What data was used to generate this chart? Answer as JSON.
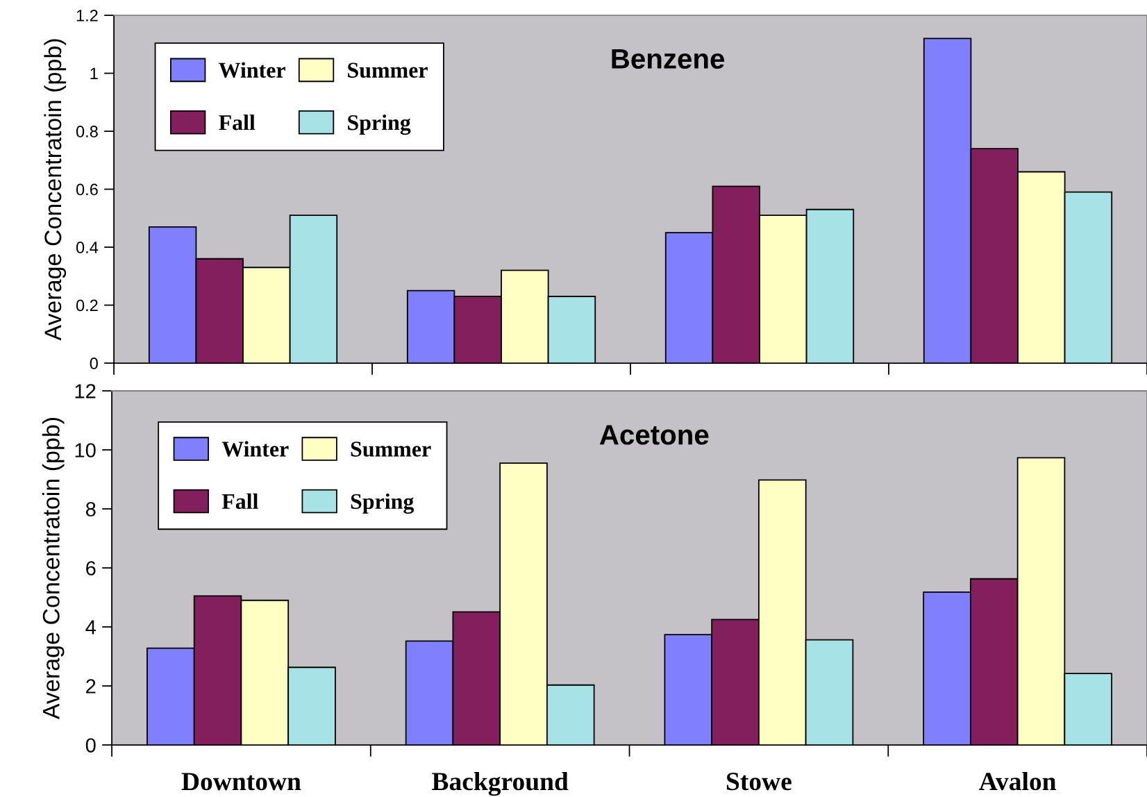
{
  "chart_data": [
    {
      "type": "bar",
      "title": "Benzene",
      "ylabel": "Average Concentratoin (ppb)",
      "categories": [
        null,
        null,
        null,
        null
      ],
      "series": [
        {
          "name": "Winter",
          "color": "#8080ff",
          "values": [
            0.47,
            0.25,
            0.45,
            1.12
          ]
        },
        {
          "name": "Fall",
          "color": "#841f5e",
          "values": [
            0.36,
            0.23,
            0.61,
            0.74
          ]
        },
        {
          "name": "Summer",
          "color": "#ffffc4",
          "values": [
            0.33,
            0.32,
            0.51,
            0.66
          ]
        },
        {
          "name": "Spring",
          "color": "#a6e2e6",
          "values": [
            0.51,
            0.23,
            0.53,
            0.59
          ]
        }
      ],
      "ylim": [
        0,
        1.2
      ],
      "yticks": [
        0,
        0.2,
        0.4,
        0.6,
        0.8,
        1,
        1.2
      ],
      "legend": "top left"
    },
    {
      "type": "bar",
      "title": "Acetone",
      "ylabel": "Average Concentratoin (ppb)",
      "categories": [
        "Downtown",
        "Background",
        "Stowe",
        "Avalon"
      ],
      "series": [
        {
          "name": "Winter",
          "color": "#8080ff",
          "values": [
            3.28,
            3.52,
            3.74,
            5.18
          ]
        },
        {
          "name": "Fall",
          "color": "#841f5e",
          "values": [
            5.05,
            4.51,
            4.25,
            5.63
          ]
        },
        {
          "name": "Summer",
          "color": "#ffffc4",
          "values": [
            4.9,
            9.55,
            8.98,
            9.73
          ]
        },
        {
          "name": "Spring",
          "color": "#a6e2e6",
          "values": [
            2.63,
            2.03,
            3.56,
            2.42
          ]
        }
      ],
      "ylim": [
        0,
        12
      ],
      "yticks": [
        0,
        2,
        4,
        6,
        8,
        10,
        12
      ],
      "legend": "top left"
    }
  ]
}
